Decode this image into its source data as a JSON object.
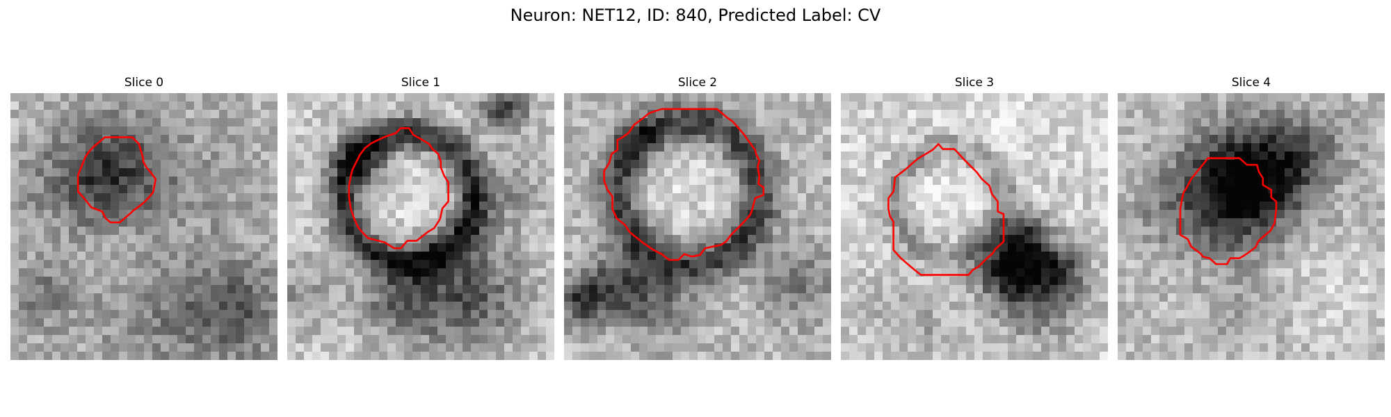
{
  "figure": {
    "title": "Neuron: NET12, ID: 840, Predicted Label: CV"
  },
  "colors": {
    "contour": "#ff0000",
    "background": "#ffffff",
    "colormap": "grayscale"
  },
  "slices": [
    {
      "label": "Slice 0",
      "vesicle": "dark-filled"
    },
    {
      "label": "Slice 1",
      "vesicle": "light-center-dark-ring"
    },
    {
      "label": "Slice 2",
      "vesicle": "light-center-dark-ring"
    },
    {
      "label": "Slice 3",
      "vesicle": "light-center-dark-edge"
    },
    {
      "label": "Slice 4",
      "vesicle": "dark-filled"
    }
  ]
}
